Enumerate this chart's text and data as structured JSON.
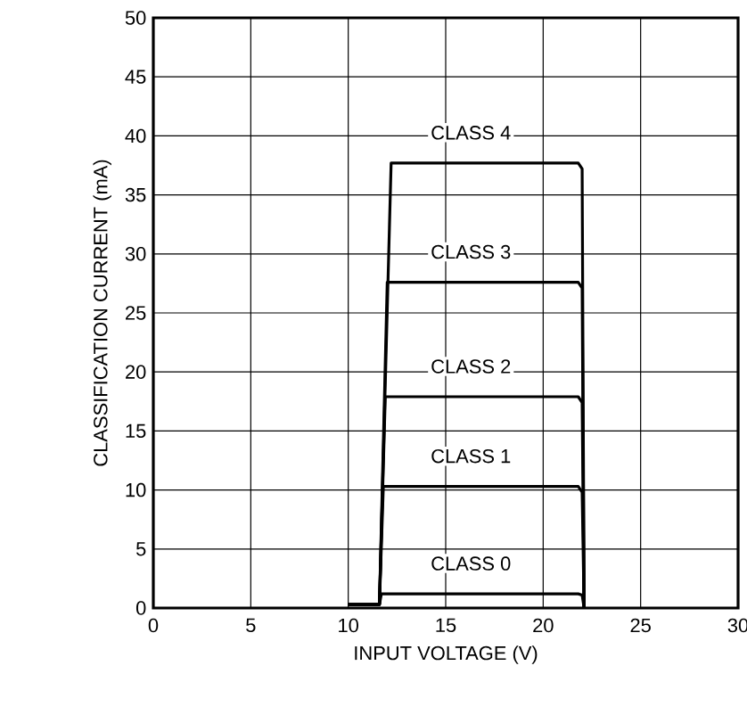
{
  "chart_data": {
    "type": "line",
    "xlabel": "INPUT VOLTAGE (V)",
    "ylabel": "CLASSIFICATION CURRENT (mA)",
    "xlim": [
      0,
      30
    ],
    "ylim": [
      0,
      50
    ],
    "xticks": [
      0,
      5,
      10,
      15,
      20,
      25,
      30
    ],
    "yticks": [
      0,
      5,
      10,
      15,
      20,
      25,
      30,
      35,
      40,
      45,
      50
    ],
    "grid": true,
    "marker": "none",
    "line_style": "solid",
    "series": [
      {
        "name": "CLASS 0",
        "color": "#000000",
        "x": [
          10,
          11.6,
          11.7,
          21.8,
          22,
          22.1
        ],
        "values": [
          0.3,
          0.3,
          1.2,
          1.2,
          1.1,
          0
        ]
      },
      {
        "name": "CLASS 1",
        "color": "#000000",
        "x": [
          10,
          11.6,
          11.8,
          21.8,
          22,
          22.1
        ],
        "values": [
          0.3,
          0.3,
          10.3,
          10.3,
          9.8,
          0
        ]
      },
      {
        "name": "CLASS 2",
        "color": "#000000",
        "x": [
          10,
          11.6,
          11.9,
          21.8,
          22,
          22.1
        ],
        "values": [
          0.3,
          0.3,
          17.9,
          17.9,
          17.4,
          0
        ]
      },
      {
        "name": "CLASS 3",
        "color": "#000000",
        "x": [
          10,
          11.6,
          12.0,
          21.8,
          22,
          22.1
        ],
        "values": [
          0.3,
          0.3,
          27.6,
          27.6,
          27.1,
          0
        ]
      },
      {
        "name": "CLASS 4",
        "color": "#000000",
        "x": [
          10,
          11.6,
          12.2,
          21.8,
          22,
          22.1
        ],
        "values": [
          0.3,
          0.3,
          37.7,
          37.7,
          37.2,
          0
        ]
      }
    ]
  }
}
